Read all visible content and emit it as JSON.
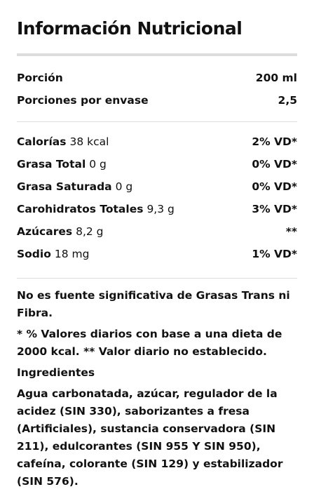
{
  "header": {
    "title": "Información Nutricional"
  },
  "servings": [
    {
      "label": "Porción",
      "value": "200 ml"
    },
    {
      "label": "Porciones por envase",
      "value": "2,5"
    }
  ],
  "nutrients": [
    {
      "name": "Calorías",
      "amount": "38 kcal",
      "dv": "2% VD*"
    },
    {
      "name": "Grasa Total",
      "amount": "0 g",
      "dv": "0% VD*"
    },
    {
      "name": "Grasa Saturada",
      "amount": "0 g",
      "dv": "0% VD*"
    },
    {
      "name": "Carohidratos Totales",
      "amount": "9,3 g",
      "dv": "3% VD*"
    },
    {
      "name": "Azúcares",
      "amount": "8,2 g",
      "dv": "**"
    },
    {
      "name": "Sodio",
      "amount": "18 mg",
      "dv": "1% VD*"
    }
  ],
  "notes": [
    "No es fuente significativa de Grasas Trans ni Fibra.",
    "* % Valores diarios con base a una dieta de 2000 kcal. ** Valor diario no establecido."
  ],
  "ingredients": {
    "title": "Ingredientes",
    "text": "Agua carbonatada, azúcar, regulador de la acidez (SIN 330), saborizantes a fresa (Artificiales), sustancia conservadora (SIN 211), edulcorantes (SIN 955 Y SIN 950), cafeína, colorante (SIN 129) y estabilizador (SIN 576)."
  }
}
